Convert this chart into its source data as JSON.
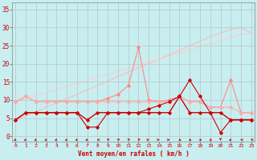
{
  "background_color": "#c8eef0",
  "grid_color": "#b0c8c8",
  "xlabel": "Vent moyen/en rafales ( km/h )",
  "x_ticks": [
    0,
    1,
    2,
    3,
    4,
    5,
    6,
    7,
    8,
    9,
    10,
    11,
    12,
    13,
    14,
    15,
    16,
    17,
    18,
    19,
    20,
    21,
    22,
    23
  ],
  "ylim": [
    -1.5,
    37
  ],
  "yticks": [
    0,
    5,
    10,
    15,
    20,
    25,
    30,
    35
  ],
  "xlim": [
    -0.3,
    23.3
  ],
  "line_upper1": [
    4.5,
    5.5,
    6.8,
    8.0,
    9.2,
    10.4,
    11.5,
    12.8,
    14.0,
    15.2,
    16.5,
    17.7,
    18.9,
    20.1,
    21.3,
    22.5,
    23.7,
    25.0,
    26.2,
    27.4,
    28.5,
    29.5,
    30.0,
    28.5
  ],
  "line_upper2": [
    9.5,
    10.3,
    11.2,
    12.0,
    12.9,
    13.7,
    14.6,
    15.4,
    16.3,
    17.1,
    18.0,
    18.8,
    19.7,
    20.5,
    21.3,
    22.2,
    23.0,
    23.9,
    24.7,
    25.5,
    26.4,
    27.2,
    28.1,
    28.5
  ],
  "line_mid1_x": [
    0,
    1,
    2,
    3,
    4,
    5,
    6,
    7,
    8,
    9,
    10,
    11,
    12,
    13,
    14,
    15,
    16,
    17,
    18,
    19,
    20,
    21,
    22,
    23
  ],
  "line_mid1": [
    9.5,
    11.0,
    9.5,
    9.5,
    9.5,
    9.5,
    9.5,
    9.5,
    9.5,
    10.5,
    11.5,
    14.0,
    24.5,
    10.0,
    9.5,
    10.0,
    11.0,
    9.5,
    9.5,
    8.0,
    8.0,
    15.5,
    6.5,
    6.5
  ],
  "line_mid2": [
    9.5,
    11.0,
    9.5,
    9.5,
    9.5,
    9.5,
    9.5,
    9.5,
    9.5,
    9.5,
    9.5,
    9.5,
    9.5,
    9.5,
    9.5,
    9.5,
    11.0,
    9.5,
    9.5,
    8.0,
    8.0,
    8.0,
    6.5,
    6.5
  ],
  "line_low1": [
    4.5,
    6.5,
    6.5,
    6.5,
    6.5,
    6.5,
    6.5,
    4.5,
    6.5,
    6.5,
    6.5,
    6.5,
    6.5,
    6.5,
    6.5,
    6.5,
    11.0,
    6.5,
    6.5,
    6.5,
    6.5,
    4.5,
    4.5,
    4.5
  ],
  "line_low2": [
    4.5,
    6.5,
    6.5,
    6.5,
    6.5,
    6.5,
    6.5,
    2.5,
    2.5,
    6.5,
    6.5,
    6.5,
    6.5,
    7.5,
    8.5,
    9.5,
    11.0,
    15.5,
    11.0,
    6.5,
    1.0,
    4.5,
    4.5,
    4.5
  ],
  "col_upper_line1": "#ffbbbb",
  "col_upper_line2": "#ffcccc",
  "col_mid1": "#ff8888",
  "col_mid2": "#ffaaaa",
  "col_low1": "#cc0000",
  "col_low2": "#cc0000",
  "wind_arrows": [
    225,
    225,
    225,
    225,
    225,
    225,
    225,
    225,
    270,
    45,
    45,
    45,
    45,
    90,
    90,
    90,
    135,
    135,
    135,
    135,
    180,
    225,
    270,
    270
  ]
}
